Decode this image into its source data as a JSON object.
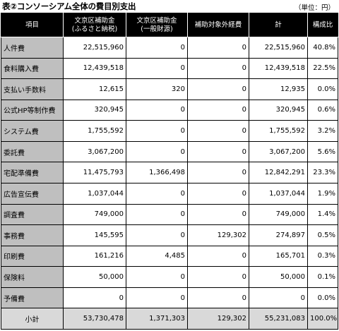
{
  "title": "表②コンソーシアム全体の費目別支出",
  "unit": "（単位：円）",
  "headers": {
    "item": "項目",
    "col1_line1": "文京区補助金",
    "col1_line2": "(ふるさと納税)",
    "col2_line1": "文京区補助金",
    "col2_line2": "(一般財源)",
    "col3": "補助対象外経費",
    "col4": "計",
    "col5": "構成比"
  },
  "rows": [
    {
      "item": "人件費",
      "v1": "22,515,960",
      "v2": "0",
      "v3": "0",
      "total": "22,515,960",
      "ratio": "40.8%"
    },
    {
      "item": "食料購入費",
      "v1": "12,439,518",
      "v2": "0",
      "v3": "0",
      "total": "12,439,518",
      "ratio": "22.5%"
    },
    {
      "item": "支払い手数料",
      "v1": "12,615",
      "v2": "320",
      "v3": "0",
      "total": "12,935",
      "ratio": "0.0%"
    },
    {
      "item": "公式HP等制作費",
      "v1": "320,945",
      "v2": "0",
      "v3": "0",
      "total": "320,945",
      "ratio": "0.6%"
    },
    {
      "item": "システム費",
      "v1": "1,755,592",
      "v2": "0",
      "v3": "0",
      "total": "1,755,592",
      "ratio": "3.2%"
    },
    {
      "item": "委託費",
      "v1": "3,067,200",
      "v2": "0",
      "v3": "0",
      "total": "3,067,200",
      "ratio": "5.6%"
    },
    {
      "item": "宅配準備費",
      "v1": "11,475,793",
      "v2": "1,366,498",
      "v3": "0",
      "total": "12,842,291",
      "ratio": "23.3%"
    },
    {
      "item": "広告宣伝費",
      "v1": "1,037,044",
      "v2": "0",
      "v3": "0",
      "total": "1,037,044",
      "ratio": "1.9%"
    },
    {
      "item": "調査費",
      "v1": "749,000",
      "v2": "0",
      "v3": "0",
      "total": "749,000",
      "ratio": "1.4%"
    },
    {
      "item": "事務費",
      "v1": "145,595",
      "v2": "0",
      "v3": "129,302",
      "total": "274,897",
      "ratio": "0.5%"
    },
    {
      "item": "印刷費",
      "v1": "161,216",
      "v2": "4,485",
      "v3": "0",
      "total": "165,701",
      "ratio": "0.3%"
    },
    {
      "item": "保険料",
      "v1": "50,000",
      "v2": "0",
      "v3": "0",
      "total": "50,000",
      "ratio": "0.1%"
    },
    {
      "item": "予備費",
      "v1": "0",
      "v2": "0",
      "v3": "0",
      "total": "0",
      "ratio": "0.0%"
    }
  ],
  "subtotal": {
    "item": "小計",
    "v1": "53,730,478",
    "v2": "1,371,303",
    "v3": "129,302",
    "total": "55,231,083",
    "ratio": "100.0%"
  }
}
